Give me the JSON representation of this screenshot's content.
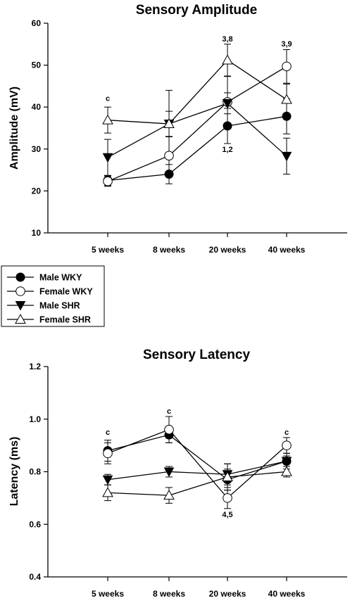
{
  "legend": {
    "entries": [
      {
        "label": "Male WKY",
        "marker": "circle-filled"
      },
      {
        "label": "Female WKY",
        "marker": "circle-open"
      },
      {
        "label": "Male SHR",
        "marker": "triangle-down-filled"
      },
      {
        "label": "Female SHR",
        "marker": "triangle-up-open"
      }
    ]
  },
  "chart_data": [
    {
      "type": "line",
      "title": "Sensory Amplitude",
      "xlabel": "",
      "ylabel": "Amplitude (mV)",
      "categories": [
        "5 weeks",
        "8 weeks",
        "20 weeks",
        "40 weeks"
      ],
      "ylim": [
        10,
        60
      ],
      "yticks": [
        "10",
        "20",
        "30",
        "40",
        "50",
        "60"
      ],
      "grid": false,
      "series": [
        {
          "name": "Male WKY",
          "marker": "circle-filled",
          "values": [
            22.5,
            24,
            35.5,
            37.8
          ],
          "err": [
            1.2,
            2.3,
            4.2,
            4.2
          ]
        },
        {
          "name": "Female WKY",
          "marker": "circle-open",
          "values": [
            22.3,
            28.4,
            41.2,
            49.7
          ],
          "err": [
            1.2,
            4.5,
            6.1,
            4.0
          ]
        },
        {
          "name": "Male SHR",
          "marker": "triangle-down-filled",
          "values": [
            28,
            36,
            40.9,
            28.3
          ],
          "err": [
            4.3,
            3.0,
            2.5,
            4.3
          ]
        },
        {
          "name": "Female SHR",
          "marker": "triangle-up-open",
          "values": [
            36.9,
            36,
            51.2,
            41.8
          ],
          "err": [
            3.1,
            8.0,
            3.8,
            3.7
          ]
        }
      ],
      "annotations": [
        {
          "text": "c",
          "category": "5 weeks",
          "y": 40.8,
          "position": "above"
        },
        {
          "text": "3,8",
          "category": "20 weeks",
          "y": 55,
          "position": "above"
        },
        {
          "text": "3,9",
          "category": "40 weeks",
          "y": 53.8,
          "position": "above"
        },
        {
          "text": "1,2",
          "category": "20 weeks",
          "y": 31.3,
          "position": "below"
        }
      ]
    },
    {
      "type": "line",
      "title": "Sensory Latency",
      "xlabel": "",
      "ylabel": "Latency (ms)",
      "categories": [
        "5 weeks",
        "8 weeks",
        "20 weeks",
        "40 weeks"
      ],
      "ylim": [
        0.4,
        1.2
      ],
      "yticks": [
        "0.4",
        "0.6",
        "0.8",
        "1.0",
        "1.2"
      ],
      "grid": false,
      "series": [
        {
          "name": "Male WKY",
          "marker": "circle-filled",
          "values": [
            0.88,
            0.94,
            0.77,
            0.84
          ],
          "err": [
            0.04,
            0.03,
            0.04,
            0.03
          ]
        },
        {
          "name": "Female WKY",
          "marker": "circle-open",
          "values": [
            0.87,
            0.96,
            0.7,
            0.9
          ],
          "err": [
            0.04,
            0.05,
            0.04,
            0.03
          ]
        },
        {
          "name": "Male SHR",
          "marker": "triangle-down-filled",
          "values": [
            0.77,
            0.8,
            0.79,
            0.84
          ],
          "err": [
            0.02,
            0.02,
            0.04,
            0.02
          ]
        },
        {
          "name": "Female SHR",
          "marker": "triangle-up-open",
          "values": [
            0.72,
            0.71,
            0.78,
            0.8
          ],
          "err": [
            0.03,
            0.03,
            0.05,
            0.02
          ]
        }
      ],
      "annotations": [
        {
          "text": "c",
          "category": "5 weeks",
          "y": 0.93,
          "position": "above"
        },
        {
          "text": "c",
          "category": "8 weeks",
          "y": 1.01,
          "position": "above"
        },
        {
          "text": "c",
          "category": "40 weeks",
          "y": 0.93,
          "position": "above"
        },
        {
          "text": "4,5",
          "category": "20 weeks",
          "y": 0.66,
          "position": "below"
        }
      ]
    }
  ]
}
